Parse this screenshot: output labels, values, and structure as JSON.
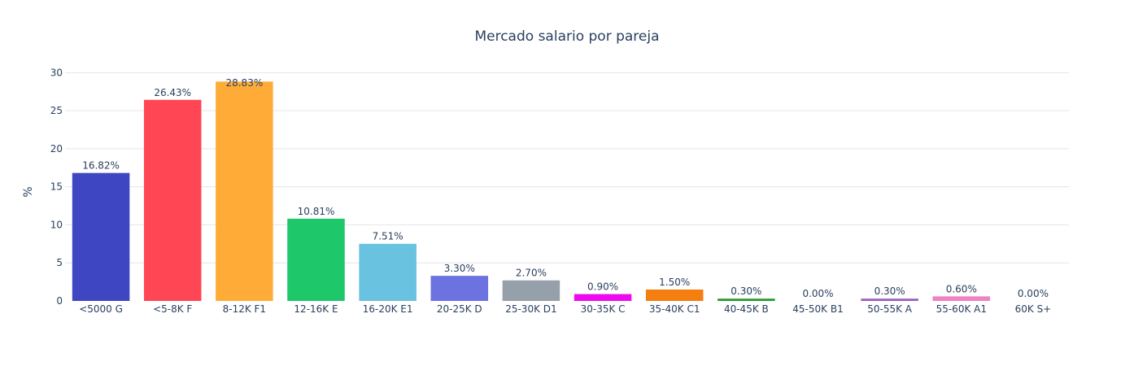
{
  "chart_data": {
    "type": "bar",
    "title": "Mercado salario por pareja",
    "ylabel": "%",
    "xlabel": "",
    "ylim": [
      0,
      31
    ],
    "yticks": [
      0,
      5,
      10,
      15,
      20,
      25,
      30
    ],
    "grid": true,
    "legend": "none",
    "categories": [
      "<5000 G",
      "<5-8K F",
      "8-12K F1",
      "12-16K E",
      "16-20K E1",
      "20-25K D",
      "25-30K D1",
      "30-35K C",
      "35-40K C1",
      "40-45K B",
      "45-50K B1",
      "50-55K A",
      "55-60K A1",
      "60K S+"
    ],
    "values": [
      16.82,
      26.43,
      28.83,
      10.81,
      7.51,
      3.3,
      2.7,
      0.9,
      1.5,
      0.3,
      0.0,
      0.3,
      0.6,
      0.0
    ],
    "value_labels": [
      "16.82%",
      "26.43%",
      "28.83%",
      "10.81%",
      "7.51%",
      "3.30%",
      "2.70%",
      "0.90%",
      "1.50%",
      "0.30%",
      "0.00%",
      "0.30%",
      "0.60%",
      "0.00%"
    ],
    "colors": [
      "#3f46c2",
      "#ff4654",
      "#ffab38",
      "#1ec76a",
      "#68c2e0",
      "#6c72e0",
      "#96a0aa",
      "#ee0aee",
      "#f57e10",
      "#259c30",
      "#c23a50",
      "#9a5ec2",
      "#ee82c2",
      "#96cc30"
    ]
  }
}
